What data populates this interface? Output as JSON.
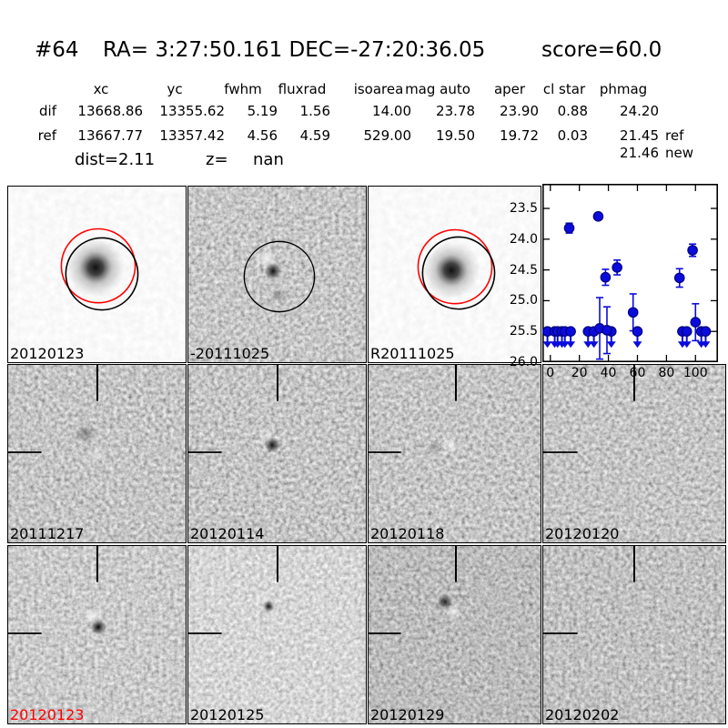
{
  "title": {
    "id": "#64",
    "coords": "RA= 3:27:50.161 DEC=-27:20:36.05",
    "score": "score=60.0"
  },
  "table": {
    "columns": [
      "xc",
      "yc",
      "fwhm",
      "fluxrad",
      "isoarea",
      "mag auto",
      "aper",
      "cl star",
      "phmag"
    ],
    "rows": [
      {
        "label": "dif",
        "values": [
          "13668.86",
          "13355.62",
          "5.19",
          "1.56",
          "14.00",
          "23.78",
          "23.90",
          "0.88",
          "24.20"
        ],
        "suffix": ""
      },
      {
        "label": "ref",
        "values": [
          "13667.77",
          "13357.42",
          "4.56",
          "4.59",
          "529.00",
          "19.50",
          "19.72",
          "0.03",
          "21.45"
        ],
        "suffix": "ref"
      },
      {
        "label": "",
        "values": [
          "",
          "",
          "",
          "",
          "",
          "",
          "",
          "",
          "21.46"
        ],
        "suffix": "new"
      }
    ],
    "dist_label": "dist=",
    "dist_value": "2.11",
    "z_label": "z=",
    "z_value": "nan"
  },
  "panels": [
    {
      "label": "20120123",
      "label_color": "#000000",
      "kind": "new-template-with-apertures"
    },
    {
      "label": "-20111025",
      "label_color": "#000000",
      "kind": "difference-with-aperture"
    },
    {
      "label": "R20111025",
      "label_color": "#000000",
      "kind": "ref-template-with-apertures"
    },
    {
      "label": "20111217",
      "label_color": "#000000",
      "kind": "difference-stamp"
    },
    {
      "label": "20120114",
      "label_color": "#000000",
      "kind": "difference-stamp"
    },
    {
      "label": "20120118",
      "label_color": "#000000",
      "kind": "difference-stamp"
    },
    {
      "label": "20120120",
      "label_color": "#000000",
      "kind": "difference-stamp"
    },
    {
      "label": "20120123",
      "label_color": "#ff0000",
      "kind": "difference-stamp"
    },
    {
      "label": "20120125",
      "label_color": "#000000",
      "kind": "difference-stamp"
    },
    {
      "label": "20120129",
      "label_color": "#000000",
      "kind": "difference-stamp"
    },
    {
      "label": "20120202",
      "label_color": "#000000",
      "kind": "difference-stamp"
    }
  ],
  "chart_data": {
    "type": "scatter",
    "title": "",
    "xlabel": "",
    "ylabel": "",
    "description": "light curve: magnitude vs epoch (days), y axis inverted",
    "xlim": [
      -5.5,
      115.5
    ],
    "ylim_top": 23.1,
    "ylim_bottom": 26.0,
    "y_inverted": true,
    "grid": false,
    "xticks": [
      0,
      20,
      40,
      60,
      80,
      100
    ],
    "yticks": [
      23.5,
      24.0,
      24.5,
      25.0,
      25.5,
      26.0
    ],
    "marker_color": "#0b0bdc",
    "marker_edge_color": "#000080",
    "series": [
      {
        "name": "detections",
        "marker": "circle-with-errorbar",
        "points": [
          [
            13,
            23.82,
            0.08
          ],
          [
            33,
            23.63,
            0.05
          ],
          [
            38,
            24.62,
            0.13
          ],
          [
            46,
            24.46,
            0.12
          ],
          [
            34,
            25.45,
            0.5
          ],
          [
            39,
            25.48,
            0.38
          ],
          [
            57,
            25.19,
            0.3
          ],
          [
            89,
            24.63,
            0.15
          ],
          [
            98,
            24.18,
            0.1
          ],
          [
            100,
            25.35,
            0.3
          ]
        ]
      },
      {
        "name": "upper_limits",
        "marker": "circle-with-down-arrow",
        "y": 25.5,
        "x": [
          -2,
          3,
          5,
          8,
          10,
          14,
          26,
          30,
          42,
          60,
          91,
          94,
          104,
          107
        ]
      }
    ]
  }
}
